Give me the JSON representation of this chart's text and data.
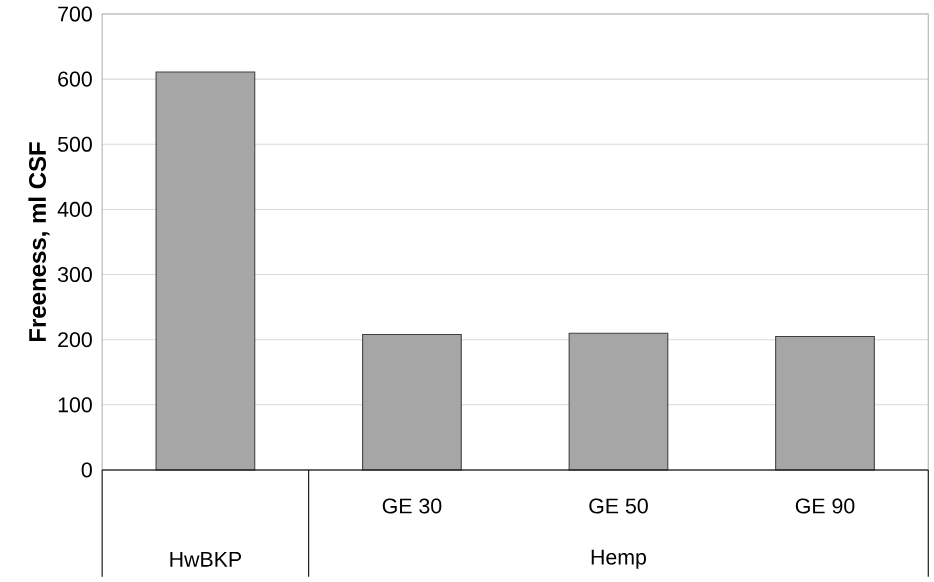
{
  "chart_data": {
    "type": "bar",
    "ylabel": "**Freeness, ml CSF**",
    "categories": [
      null,
      "GE 30",
      "GE 50",
      "GE 90"
    ],
    "values": [
      611,
      208,
      210,
      205
    ],
    "color": "#a6a6a6",
    "ylim": [
      0,
      700
    ],
    "yticks": [
      0,
      100,
      200,
      300,
      400,
      500,
      600,
      700
    ],
    "grid": "y",
    "annotations": [
      "HwBKP",
      "Hemp"
    ]
  }
}
